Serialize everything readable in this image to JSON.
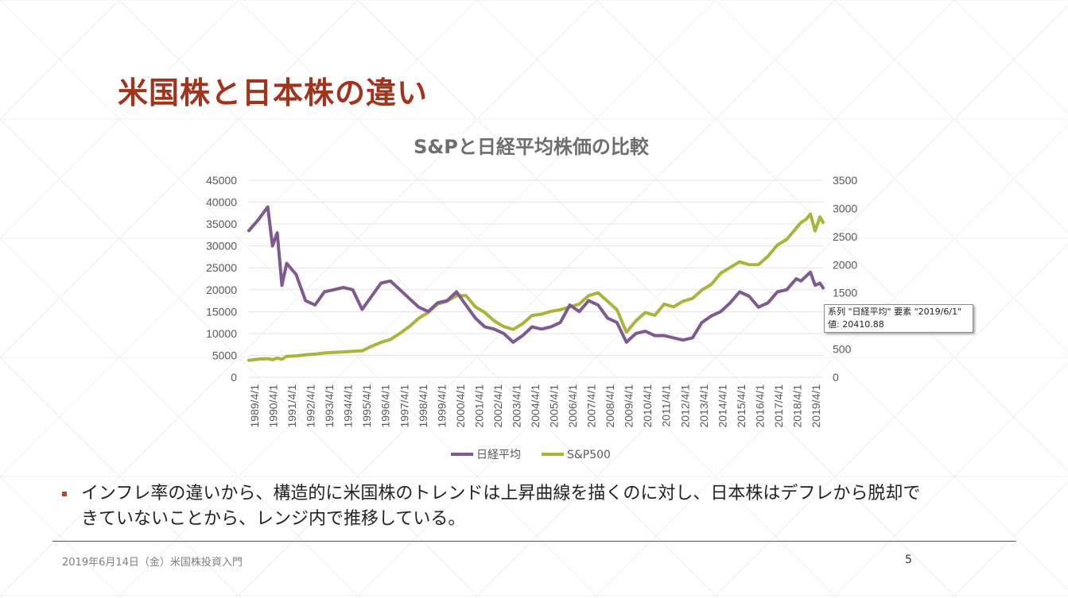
{
  "slide": {
    "title": "米国株と日本株の違い",
    "bullet": "インフレ率の違いから、構造的に米国株のトレンドは上昇曲線を描くのに対し、日本株はデフレから脱却できていないことから、レンジ内で推移している。",
    "footer": "2019年6月14日（金）米国株投資入門",
    "page_number": "5"
  },
  "tooltip": {
    "line1": "系列 \"日経平均\" 要素 \"2019/6/1\"",
    "line2": "値: 20410.88"
  },
  "colors": {
    "title": "#a0341c",
    "nikkei": "#7f5a91",
    "sp500": "#a9b53a",
    "grid": "#e3e3e3",
    "divider": "#a0341c"
  },
  "chart_data": {
    "type": "line",
    "title": "S&Pと日経平均株価の比較",
    "x": [
      1989,
      1989.5,
      1990,
      1990.25,
      1990.5,
      1990.75,
      1991,
      1991.5,
      1992,
      1992.5,
      1993,
      1993.5,
      1994,
      1994.5,
      1995,
      1995.5,
      1996,
      1996.5,
      1997,
      1997.5,
      1998,
      1998.5,
      1999,
      1999.5,
      2000,
      2000.5,
      2001,
      2001.5,
      2002,
      2002.5,
      2003,
      2003.5,
      2004,
      2004.5,
      2005,
      2005.5,
      2006,
      2006.5,
      2007,
      2007.5,
      2008,
      2008.5,
      2009,
      2009.5,
      2010,
      2010.5,
      2011,
      2011.5,
      2012,
      2012.5,
      2013,
      2013.5,
      2014,
      2014.5,
      2015,
      2015.5,
      2016,
      2016.5,
      2017,
      2017.5,
      2018,
      2018.25,
      2018.5,
      2018.75,
      2019,
      2019.25,
      2019.42
    ],
    "x_tick_labels": [
      "1989/4/1",
      "1990/4/1",
      "1991/4/1",
      "1992/4/1",
      "1993/4/1",
      "1994/4/1",
      "1995/4/1",
      "1996/4/1",
      "1997/4/1",
      "1998/4/1",
      "1999/4/1",
      "2000/4/1",
      "2001/4/1",
      "2002/4/1",
      "2003/4/1",
      "2004/4/1",
      "2005/4/1",
      "2006/4/1",
      "2007/4/1",
      "2008/4/1",
      "2009/4/1",
      "2010/4/1",
      "2011/4/1",
      "2012/4/1",
      "2013/4/1",
      "2014/4/1",
      "2015/4/1",
      "2016/4/1",
      "2017/4/1",
      "2018/4/1",
      "2019/4/1"
    ],
    "x_range": [
      1989,
      2019.42
    ],
    "series": [
      {
        "name": "日経平均",
        "axis": "left",
        "values": [
          33500,
          36000,
          38900,
          30000,
          33000,
          21000,
          26000,
          23500,
          17500,
          16500,
          19500,
          20000,
          20500,
          20000,
          15500,
          18500,
          21500,
          22000,
          20000,
          18000,
          16000,
          15000,
          17000,
          17500,
          19500,
          16500,
          13500,
          11500,
          11000,
          10000,
          8000,
          9500,
          11500,
          11000,
          11500,
          12500,
          16500,
          15000,
          17500,
          16500,
          13500,
          12500,
          8000,
          10000,
          10500,
          9500,
          9500,
          9000,
          8500,
          9000,
          12500,
          14000,
          15000,
          17000,
          19500,
          18500,
          16000,
          17000,
          19500,
          20000,
          22500,
          22000,
          23000,
          24000,
          21000,
          21500,
          20411
        ]
      },
      {
        "name": "S&P500",
        "axis": "right",
        "values": [
          300,
          320,
          330,
          310,
          340,
          320,
          370,
          380,
          400,
          410,
          430,
          440,
          450,
          460,
          470,
          550,
          620,
          670,
          780,
          900,
          1050,
          1150,
          1300,
          1350,
          1450,
          1450,
          1250,
          1150,
          1000,
          900,
          850,
          950,
          1100,
          1120,
          1170,
          1200,
          1250,
          1300,
          1450,
          1500,
          1350,
          1200,
          800,
          1000,
          1150,
          1100,
          1300,
          1250,
          1350,
          1400,
          1550,
          1650,
          1850,
          1950,
          2050,
          2000,
          2000,
          2150,
          2350,
          2450,
          2650,
          2750,
          2800,
          2900,
          2600,
          2850,
          2750
        ]
      }
    ],
    "left_axis": {
      "range": [
        0,
        45000
      ],
      "ticks": [
        "0",
        "5000",
        "10000",
        "15000",
        "20000",
        "25000",
        "30000",
        "35000",
        "40000",
        "45000"
      ]
    },
    "right_axis": {
      "range": [
        0,
        3500
      ],
      "ticks": [
        "0",
        "500",
        "1000",
        "1500",
        "2000",
        "2500",
        "3000",
        "3500"
      ]
    },
    "grid": true,
    "legend": {
      "position": "bottom",
      "items": [
        "日経平均",
        "S&P500"
      ]
    }
  }
}
